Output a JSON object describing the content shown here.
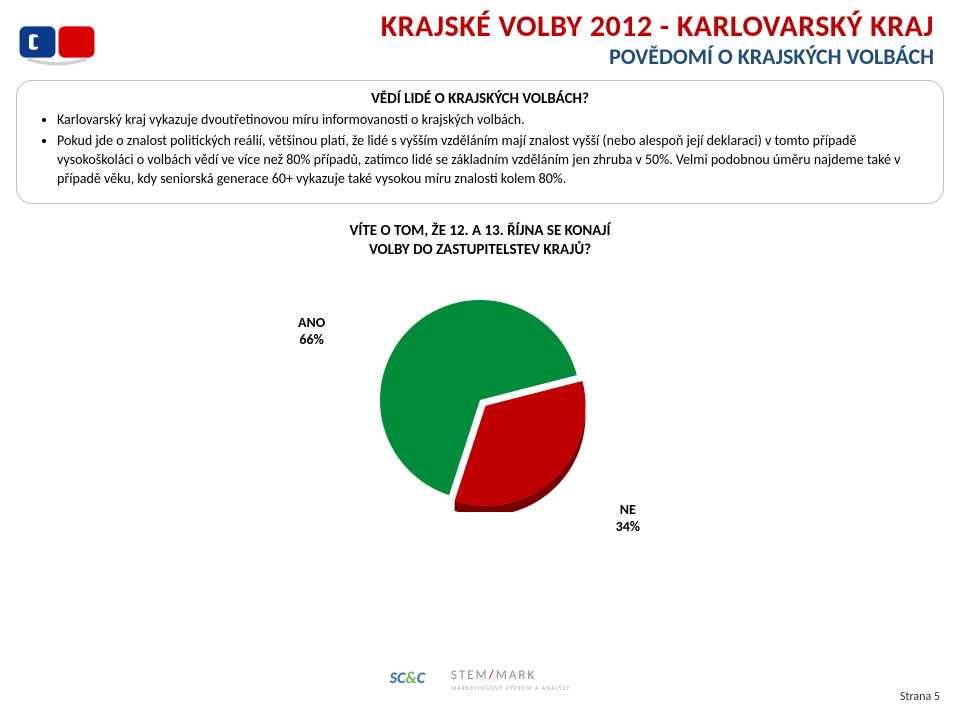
{
  "header": {
    "title_main": "KRAJSKÉ VOLBY 2012 - KARLOVARSKÝ KRAJ",
    "title_sub": "POVĚDOMÍ O KRAJSKÝCH VOLBÁCH",
    "title_main_color": "#c00000",
    "title_sub_color": "#1f4e79"
  },
  "info": {
    "heading": "VĚDÍ LIDÉ O KRAJSKÝCH VOLBÁCH?",
    "bullets": [
      "Karlovarský kraj vykazuje dvoutřetinovou míru informovanosti o krajských volbách.",
      "Pokud jde o znalost politických reálií, většinou platí, že lidé s vyšším vzděláním mají znalost vyšší (nebo alespoň její deklaraci) v tomto případě vysokoškoláci o volbách vědí ve více než 80% případů, zatímco lidé se základním vzděláním jen zhruba v 50%. Velmi podobnou úměru najdeme také v případě věku, kdy seniorská generace 60+ vykazuje také vysokou míru znalosti kolem 80%."
    ]
  },
  "chart": {
    "type": "pie",
    "title_line1": "VÍTE O TOM, ŽE 12. A 13. ŘÍJNA SE KONAJÍ",
    "title_line2": "VOLBY DO ZASTUPITELSTEV KRAJŮ?",
    "title_fontsize": 15,
    "slices": [
      {
        "label": "ANO",
        "value": 66,
        "color": "#008c3a",
        "explode": 0
      },
      {
        "label": "NE",
        "value": 34,
        "color": "#c00000",
        "explode": 8
      }
    ],
    "label_ano": "ANO",
    "pct_ano": "66%",
    "label_ne": "NE",
    "pct_ne": "34%",
    "background_color": "#ffffff",
    "radius": 100,
    "side_shade_ano": "#005e27",
    "side_shade_ne": "#7a0000",
    "start_angle_deg": 108
  },
  "footer": {
    "logo_scc": "SC&C",
    "logo_stem": "STEM",
    "logo_stem_mark": "MARK",
    "logo_stem_sub": "MARKETINGOVÝ VÝZKUM A ANALÝZY",
    "page_label": "Strana 5"
  }
}
